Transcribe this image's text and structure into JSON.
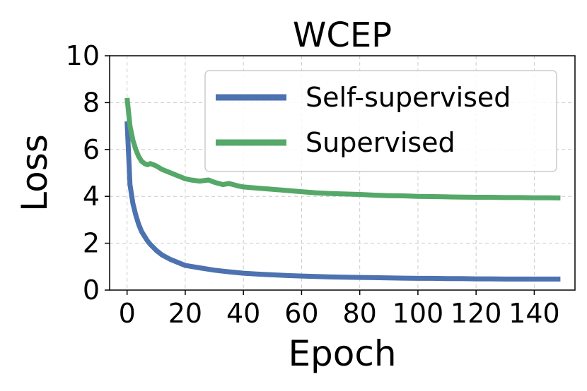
{
  "chart_data": {
    "type": "line",
    "title": "WCEP",
    "xlabel": "Epoch",
    "ylabel": "Loss",
    "xlim": [
      -6,
      154
    ],
    "ylim": [
      0,
      10
    ],
    "xticks": [
      0,
      20,
      40,
      60,
      80,
      100,
      120,
      140
    ],
    "yticks": [
      0,
      2,
      4,
      6,
      8,
      10
    ],
    "grid": true,
    "legend_position": "top-right",
    "series": [
      {
        "name": "Self-supervised",
        "color": "#4c72b0",
        "x": [
          0,
          1,
          2,
          3,
          4,
          5,
          6,
          7,
          8,
          10,
          12,
          15,
          18,
          20,
          25,
          30,
          35,
          40,
          45,
          50,
          55,
          60,
          65,
          70,
          75,
          80,
          85,
          90,
          95,
          100,
          105,
          110,
          115,
          120,
          125,
          130,
          135,
          140,
          145,
          149
        ],
        "values": [
          7.2,
          4.5,
          3.7,
          3.2,
          2.8,
          2.5,
          2.3,
          2.1,
          1.95,
          1.7,
          1.5,
          1.3,
          1.15,
          1.05,
          0.95,
          0.85,
          0.78,
          0.72,
          0.68,
          0.65,
          0.62,
          0.6,
          0.58,
          0.56,
          0.55,
          0.54,
          0.53,
          0.52,
          0.51,
          0.5,
          0.5,
          0.49,
          0.49,
          0.48,
          0.48,
          0.47,
          0.47,
          0.47,
          0.47,
          0.47
        ]
      },
      {
        "name": "Supervised",
        "color": "#55a868",
        "x": [
          0,
          1,
          2,
          3,
          4,
          5,
          6,
          7,
          8,
          10,
          12,
          15,
          18,
          20,
          22,
          25,
          28,
          30,
          33,
          35,
          38,
          40,
          45,
          50,
          55,
          60,
          65,
          70,
          75,
          80,
          85,
          90,
          95,
          100,
          105,
          110,
          115,
          120,
          125,
          130,
          135,
          140,
          145,
          149
        ],
        "values": [
          8.2,
          7.0,
          6.4,
          6.0,
          5.7,
          5.5,
          5.4,
          5.35,
          5.4,
          5.3,
          5.15,
          5.0,
          4.85,
          4.75,
          4.7,
          4.65,
          4.7,
          4.6,
          4.5,
          4.55,
          4.45,
          4.4,
          4.35,
          4.3,
          4.25,
          4.2,
          4.15,
          4.12,
          4.1,
          4.08,
          4.05,
          4.03,
          4.02,
          4.0,
          3.99,
          3.98,
          3.97,
          3.96,
          3.96,
          3.95,
          3.95,
          3.94,
          3.94,
          3.93
        ]
      }
    ]
  }
}
